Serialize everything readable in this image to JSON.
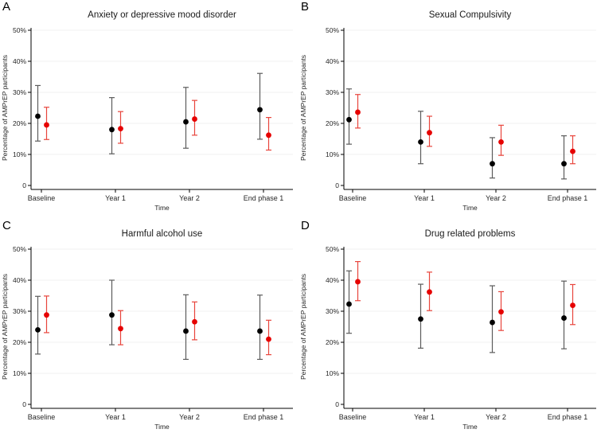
{
  "figure": {
    "xlabel": "Time",
    "ylabel": "Percentage of AMPrEP participants"
  },
  "colors": {
    "background": "#ffffff",
    "axis": "#000000",
    "text": "#262626",
    "gridline": "#f0f0f0",
    "series_black_point": "#000000",
    "series_black_ci": "#5c5c5c",
    "series_red_point": "#e60000",
    "series_red_ci": "#e8453c"
  },
  "chart_data": [
    {
      "type": "scatter",
      "panel": "A",
      "title": "Anxiety or depressive mood disorder",
      "xlabel": "Time",
      "ylabel": "Percentage of AMPrEP participants",
      "categories": [
        "Baseline",
        "Year 1",
        "Year 2",
        "End phase 1"
      ],
      "ylim": [
        0,
        50
      ],
      "yticks": [
        0,
        10,
        20,
        30,
        40,
        50
      ],
      "ytick_labels": [
        "0",
        "10%",
        "20%",
        "30%",
        "40%",
        "50%"
      ],
      "grid": "horizontal",
      "legend": "none",
      "series": [
        {
          "name": "black",
          "color": "#000000",
          "values": [
            22.3,
            18.0,
            20.5,
            24.4
          ],
          "ci_low": [
            14.3,
            10.2,
            12.0,
            14.9
          ],
          "ci_high": [
            32.2,
            28.3,
            31.6,
            36.1
          ]
        },
        {
          "name": "red",
          "color": "#e60000",
          "values": [
            19.5,
            18.3,
            21.4,
            16.2
          ],
          "ci_low": [
            14.8,
            13.6,
            16.2,
            11.4
          ],
          "ci_high": [
            25.2,
            23.8,
            27.4,
            21.9
          ]
        }
      ]
    },
    {
      "type": "scatter",
      "panel": "B",
      "title": "Sexual Compulsivity",
      "xlabel": "Time",
      "ylabel": "Percentage of AMPrEP participants",
      "categories": [
        "Baseline",
        "Year 1",
        "Year 2",
        "End phase 1"
      ],
      "ylim": [
        0,
        50
      ],
      "yticks": [
        0,
        10,
        20,
        30,
        40,
        50
      ],
      "ytick_labels": [
        "0",
        "10%",
        "20%",
        "30%",
        "40%",
        "50%"
      ],
      "grid": "horizontal",
      "legend": "none",
      "series": [
        {
          "name": "black",
          "color": "#000000",
          "values": [
            21.2,
            14.0,
            7.0,
            7.0
          ],
          "ci_low": [
            13.3,
            7.0,
            2.4,
            2.1
          ],
          "ci_high": [
            31.1,
            23.9,
            15.4,
            16.0
          ]
        },
        {
          "name": "red",
          "color": "#e60000",
          "values": [
            23.6,
            17.0,
            14.0,
            11.0
          ],
          "ci_low": [
            18.5,
            12.6,
            9.7,
            7.0
          ],
          "ci_high": [
            29.3,
            22.3,
            19.4,
            16.0
          ]
        }
      ]
    },
    {
      "type": "scatter",
      "panel": "C",
      "title": "Harmful alcohol use",
      "xlabel": "Time",
      "ylabel": "Percentage of AMPrEP participants",
      "categories": [
        "Baseline",
        "Year 1",
        "Year 2",
        "End phase 1"
      ],
      "ylim": [
        0,
        50
      ],
      "yticks": [
        0,
        10,
        20,
        30,
        40,
        50
      ],
      "ytick_labels": [
        "0",
        "10%",
        "20%",
        "30%",
        "40%",
        "50%"
      ],
      "grid": "horizontal",
      "legend": "none",
      "series": [
        {
          "name": "black",
          "color": "#000000",
          "values": [
            24.0,
            28.8,
            23.6,
            23.6
          ],
          "ci_low": [
            16.2,
            19.2,
            14.5,
            14.5
          ],
          "ci_high": [
            34.8,
            40.0,
            35.3,
            35.2
          ]
        },
        {
          "name": "red",
          "color": "#e60000",
          "values": [
            28.8,
            24.4,
            26.6,
            21.0
          ],
          "ci_low": [
            23.1,
            19.2,
            20.8,
            16.0
          ],
          "ci_high": [
            34.9,
            30.2,
            33.0,
            27.1
          ]
        }
      ]
    },
    {
      "type": "scatter",
      "panel": "D",
      "title": "Drug related problems",
      "xlabel": "Time",
      "ylabel": "Percentage of AMPrEP participants",
      "categories": [
        "Baseline",
        "Year 1",
        "Year 2",
        "End phase 1"
      ],
      "ylim": [
        0,
        50
      ],
      "yticks": [
        0,
        10,
        20,
        30,
        40,
        50
      ],
      "ytick_labels": [
        "0",
        "10%",
        "20%",
        "30%",
        "40%",
        "50%"
      ],
      "grid": "horizontal",
      "legend": "none",
      "series": [
        {
          "name": "black",
          "color": "#000000",
          "values": [
            32.3,
            27.5,
            26.4,
            27.8
          ],
          "ci_low": [
            22.9,
            18.1,
            16.7,
            17.9
          ],
          "ci_high": [
            43.0,
            38.7,
            38.2,
            39.7
          ]
        },
        {
          "name": "red",
          "color": "#e60000",
          "values": [
            39.5,
            36.2,
            29.8,
            31.9
          ],
          "ci_low": [
            33.4,
            30.2,
            23.8,
            25.7
          ],
          "ci_high": [
            46.0,
            42.6,
            36.3,
            38.6
          ]
        }
      ]
    }
  ]
}
